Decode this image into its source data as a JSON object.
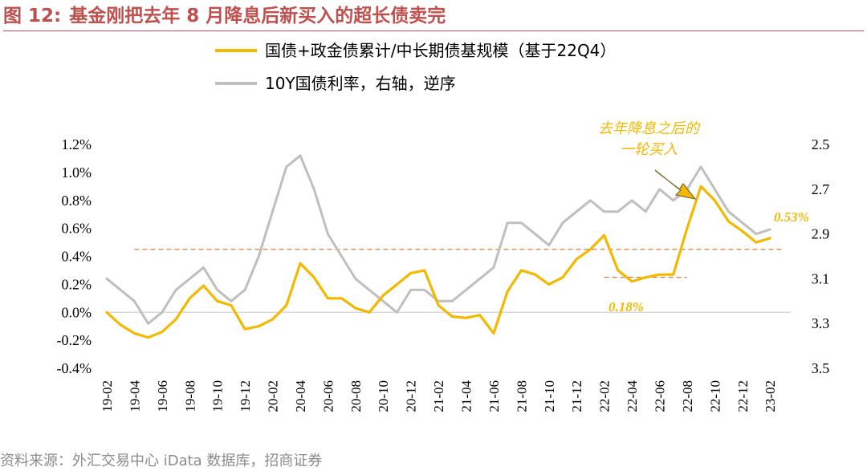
{
  "header": {
    "figure_label": "图 12:",
    "title": "基金刚把去年 8 月降息后新买入的超长债卖完"
  },
  "source": "资料来源：外汇交易中心 iData 数据库，招商证券",
  "colors": {
    "title": "#c0504d",
    "primary_series": "#f5b800",
    "secondary_series": "#bfbfbf",
    "reference_lines": "#e07a3c"
  },
  "chart_data": {
    "type": "line",
    "legend_placement": "top",
    "grid": false,
    "x": [
      "19-02",
      "19-04",
      "19-06",
      "19-08",
      "19-10",
      "19-12",
      "20-02",
      "20-04",
      "20-06",
      "20-08",
      "20-10",
      "20-12",
      "21-02",
      "21-04",
      "21-06",
      "21-08",
      "21-10",
      "21-12",
      "22-02",
      "22-04",
      "22-06",
      "22-08",
      "22-10",
      "22-12",
      "23-02"
    ],
    "y_left": {
      "ticks": [
        "-0.4%",
        "-0.2%",
        "0.0%",
        "0.2%",
        "0.4%",
        "0.6%",
        "0.8%",
        "1.0%",
        "1.2%"
      ],
      "ylim": [
        -0.4,
        1.2
      ]
    },
    "y_right": {
      "ticks": [
        "2.5",
        "2.7",
        "2.9",
        "3.1",
        "3.3",
        "3.5"
      ],
      "ylim": [
        3.5,
        2.5
      ],
      "inverted": true
    },
    "series": [
      {
        "name": "国债+政金债累计/中长期债基规模（基于22Q4）",
        "axis": "left",
        "color": "#f5b800",
        "points": [
          [
            "19-02",
            0.0
          ],
          [
            "19-03",
            -0.09
          ],
          [
            "19-04",
            -0.15
          ],
          [
            "19-05",
            -0.18
          ],
          [
            "19-06",
            -0.14
          ],
          [
            "19-07",
            -0.05
          ],
          [
            "19-08",
            0.1
          ],
          [
            "19-09",
            0.19
          ],
          [
            "19-10",
            0.08
          ],
          [
            "19-11",
            0.05
          ],
          [
            "19-12",
            -0.12
          ],
          [
            "20-01",
            -0.1
          ],
          [
            "20-02",
            -0.05
          ],
          [
            "20-03",
            0.05
          ],
          [
            "20-04",
            0.35
          ],
          [
            "20-05",
            0.25
          ],
          [
            "20-06",
            0.1
          ],
          [
            "20-07",
            0.1
          ],
          [
            "20-08",
            0.03
          ],
          [
            "20-09",
            0.0
          ],
          [
            "20-10",
            0.12
          ],
          [
            "20-11",
            0.2
          ],
          [
            "20-12",
            0.28
          ],
          [
            "21-01",
            0.3
          ],
          [
            "21-02",
            0.05
          ],
          [
            "21-03",
            -0.03
          ],
          [
            "21-04",
            -0.04
          ],
          [
            "21-05",
            -0.02
          ],
          [
            "21-06",
            -0.15
          ],
          [
            "21-07",
            0.15
          ],
          [
            "21-08",
            0.3
          ],
          [
            "21-09",
            0.27
          ],
          [
            "21-10",
            0.2
          ],
          [
            "21-11",
            0.25
          ],
          [
            "21-12",
            0.38
          ],
          [
            "22-01",
            0.45
          ],
          [
            "22-02",
            0.55
          ],
          [
            "22-03",
            0.3
          ],
          [
            "22-04",
            0.22
          ],
          [
            "22-05",
            0.25
          ],
          [
            "22-06",
            0.27
          ],
          [
            "22-07",
            0.27
          ],
          [
            "22-08",
            0.6
          ],
          [
            "22-09",
            0.9
          ],
          [
            "22-10",
            0.8
          ],
          [
            "22-11",
            0.65
          ],
          [
            "22-12",
            0.58
          ],
          [
            "23-01",
            0.5
          ],
          [
            "23-02",
            0.53
          ]
        ]
      },
      {
        "name": "10Y国债利率，右轴，逆序",
        "axis": "right",
        "color": "#bfbfbf",
        "points": [
          [
            "19-02",
            3.1
          ],
          [
            "19-03",
            3.15
          ],
          [
            "19-04",
            3.2
          ],
          [
            "19-05",
            3.3
          ],
          [
            "19-06",
            3.25
          ],
          [
            "19-07",
            3.15
          ],
          [
            "19-08",
            3.1
          ],
          [
            "19-09",
            3.05
          ],
          [
            "19-10",
            3.15
          ],
          [
            "19-11",
            3.2
          ],
          [
            "19-12",
            3.15
          ],
          [
            "20-01",
            3.0
          ],
          [
            "20-02",
            2.8
          ],
          [
            "20-03",
            2.6
          ],
          [
            "20-04",
            2.55
          ],
          [
            "20-05",
            2.7
          ],
          [
            "20-06",
            2.9
          ],
          [
            "20-07",
            3.0
          ],
          [
            "20-08",
            3.1
          ],
          [
            "20-09",
            3.15
          ],
          [
            "20-10",
            3.2
          ],
          [
            "20-11",
            3.25
          ],
          [
            "20-12",
            3.15
          ],
          [
            "21-01",
            3.15
          ],
          [
            "21-02",
            3.2
          ],
          [
            "21-03",
            3.2
          ],
          [
            "21-04",
            3.15
          ],
          [
            "21-05",
            3.1
          ],
          [
            "21-06",
            3.05
          ],
          [
            "21-07",
            2.85
          ],
          [
            "21-08",
            2.85
          ],
          [
            "21-09",
            2.9
          ],
          [
            "21-10",
            2.95
          ],
          [
            "21-11",
            2.85
          ],
          [
            "21-12",
            2.8
          ],
          [
            "22-01",
            2.75
          ],
          [
            "22-02",
            2.8
          ],
          [
            "22-03",
            2.8
          ],
          [
            "22-04",
            2.75
          ],
          [
            "22-05",
            2.8
          ],
          [
            "22-06",
            2.7
          ],
          [
            "22-07",
            2.75
          ],
          [
            "22-08",
            2.7
          ],
          [
            "22-09",
            2.6
          ],
          [
            "22-10",
            2.7
          ],
          [
            "22-11",
            2.8
          ],
          [
            "22-12",
            2.85
          ],
          [
            "23-01",
            2.9
          ],
          [
            "23-02",
            2.88
          ]
        ]
      }
    ],
    "reference_lines": [
      {
        "axis": "left",
        "value": 0.45,
        "from": "19-04",
        "to": "23-03"
      },
      {
        "axis": "left",
        "value": 0.25,
        "from": "22-02",
        "to": "22-08"
      }
    ],
    "annotations": {
      "callout_line1": "去年降息之后的",
      "callout_line2": "一轮买入",
      "low_value_label": "0.18%",
      "end_value_label": "0.53%"
    }
  }
}
